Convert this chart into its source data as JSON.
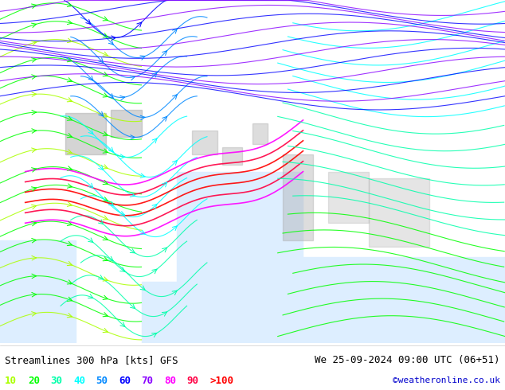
{
  "title_left": "Streamlines 300 hPa [kts] GFS",
  "title_right": "We 25-09-2024 09:00 UTC (06+51)",
  "copyright": "©weatheronline.co.uk",
  "legend_values": [
    "10",
    "20",
    "30",
    "40",
    "50",
    "60",
    "70",
    "80",
    "90",
    ">100"
  ],
  "legend_colors": [
    "#aaff00",
    "#00ff00",
    "#00ffaa",
    "#00ffff",
    "#0088ff",
    "#0000ff",
    "#8800ff",
    "#ff00ff",
    "#ff0044",
    "#ff0000"
  ],
  "bg_color": "#ffffff",
  "land_color": "#ccff99",
  "text_color": "#000000",
  "bottom_bg": "#ffffff",
  "figsize": [
    6.34,
    4.9
  ],
  "dpi": 100
}
